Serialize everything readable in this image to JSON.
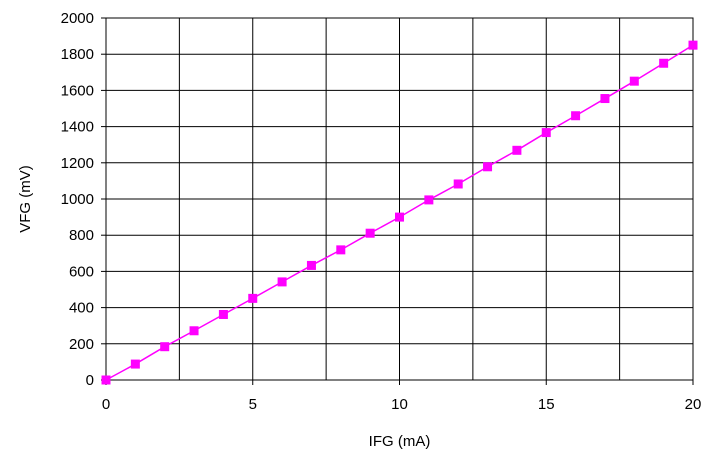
{
  "chart_data": {
    "type": "line",
    "title": "",
    "xlabel": "IFG (mA)",
    "ylabel": "VFG (mV)",
    "xlim": [
      0,
      20
    ],
    "ylim": [
      0,
      2000
    ],
    "x_ticks": [
      0,
      5,
      10,
      15,
      20
    ],
    "y_ticks": [
      0,
      200,
      400,
      600,
      800,
      1000,
      1200,
      1400,
      1600,
      1800,
      2000
    ],
    "x_gridlines": [
      0,
      2.5,
      5,
      7.5,
      10,
      12.5,
      15,
      17.5,
      20
    ],
    "y_gridlines": [
      0,
      200,
      400,
      600,
      800,
      1000,
      1200,
      1400,
      1600,
      1800,
      2000
    ],
    "grid": true,
    "legend": "none",
    "series": [
      {
        "color": "#ff00ff",
        "marker": "square",
        "x": [
          0,
          1,
          2,
          3,
          4,
          5,
          6,
          7,
          8,
          9,
          10,
          11,
          12,
          13,
          14,
          15,
          16,
          17,
          18,
          19,
          20
        ],
        "y": [
          0,
          88,
          184,
          272,
          362,
          451,
          542,
          633,
          719,
          811,
          900,
          995,
          1083,
          1178,
          1269,
          1367,
          1460,
          1555,
          1651,
          1750,
          1850
        ]
      }
    ]
  }
}
